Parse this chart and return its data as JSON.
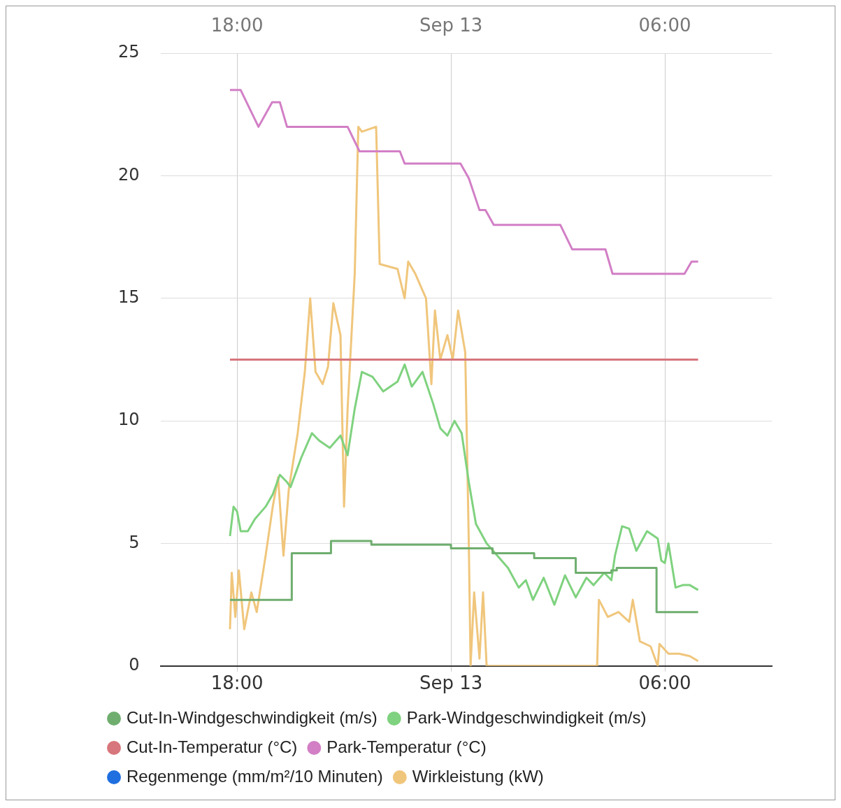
{
  "chart_data": {
    "type": "line",
    "xlim": [
      "--09-12T15:51",
      "--09-13T09:00"
    ],
    "xticks": [
      {
        "value": "--09-12T18:00",
        "label": "18:00"
      },
      {
        "value": "--09-13",
        "label": "Sep 13"
      },
      {
        "value": "--09-13T06:00",
        "label": "06:00"
      }
    ],
    "x2lim": [
      "--09-12T15:51",
      "--09-13T09:00"
    ],
    "x2ticks": [
      {
        "value": "--09-12T18:00",
        "label": "18:00"
      },
      {
        "value": "--09-13",
        "label": "Sep 13"
      },
      {
        "value": "--09-13T06:00",
        "label": "06:00"
      }
    ],
    "ylim": [
      0,
      25
    ],
    "yticks": [
      0,
      5,
      10,
      15,
      20,
      25
    ],
    "grid": true,
    "legend": "bottom",
    "marker": "none",
    "line_style": "solid",
    "series": [
      {
        "name": "Cut-In-Windgeschwindigkeit (m/s)",
        "type": "step",
        "color": "#6fae6f",
        "x": [
          "--09-12T17:48",
          "--09-12T19:32",
          "--09-12T20:38",
          "--09-12T21:46",
          "--09-13T00:00",
          "--09-13T01:10",
          "--09-13T02:20",
          "--09-13T03:30",
          "--09-13T04:30",
          "--09-13T04:39",
          "--09-13T05:46",
          "--09-13T06:56"
        ],
        "values": [
          2.7,
          4.6,
          5.1,
          4.95,
          4.8,
          4.6,
          4.4,
          3.8,
          3.9,
          4.0,
          2.2,
          2.2
        ]
      },
      {
        "name": "Park-Windgeschwindigkeit (m/s)",
        "color": "#7fd27f",
        "x": [
          "--09-12T17:48",
          "--09-12T17:54",
          "--09-12T18:00",
          "--09-12T18:06",
          "--09-12T18:18",
          "--09-12T18:30",
          "--09-12T18:48",
          "--09-12T19:00",
          "--09-12T19:12",
          "--09-12T19:24",
          "--09-12T19:30",
          "--09-12T19:48",
          "--09-12T20:06",
          "--09-12T20:18",
          "--09-12T20:36",
          "--09-12T20:54",
          "--09-12T21:06",
          "--09-12T21:18",
          "--09-12T21:30",
          "--09-12T21:48",
          "--09-12T22:06",
          "--09-12T22:30",
          "--09-12T22:42",
          "--09-12T22:54",
          "--09-12T23:12",
          "--09-12T23:30",
          "--09-12T23:42",
          "--09-12T23:54",
          "--09-13T00:06",
          "--09-13T00:18",
          "--09-13T00:30",
          "--09-13T00:42",
          "--09-13T01:00",
          "--09-13T01:18",
          "--09-13T01:36",
          "--09-13T01:54",
          "--09-13T02:06",
          "--09-13T02:18",
          "--09-13T02:36",
          "--09-13T02:54",
          "--09-13T03:12",
          "--09-13T03:30",
          "--09-13T03:48",
          "--09-13T04:00",
          "--09-13T04:18",
          "--09-13T04:30",
          "--09-13T04:36",
          "--09-13T04:48",
          "--09-13T05:00",
          "--09-13T05:12",
          "--09-13T05:30",
          "--09-13T05:48",
          "--09-13T05:54",
          "--09-13T06:00",
          "--09-13T06:06",
          "--09-13T06:18",
          "--09-13T06:30",
          "--09-13T06:42",
          "--09-13T06:56"
        ],
        "values": [
          5.3,
          6.5,
          6.3,
          5.5,
          5.5,
          6.0,
          6.5,
          7.0,
          7.8,
          7.5,
          7.3,
          8.5,
          9.5,
          9.2,
          8.9,
          9.4,
          8.6,
          10.5,
          12.0,
          11.8,
          11.2,
          11.6,
          12.3,
          11.4,
          12.0,
          10.7,
          9.7,
          9.4,
          10.0,
          9.5,
          7.5,
          5.8,
          5.0,
          4.5,
          4.0,
          3.2,
          3.5,
          2.7,
          3.6,
          2.5,
          3.7,
          2.8,
          3.6,
          3.3,
          3.8,
          3.5,
          4.5,
          5.7,
          5.6,
          4.7,
          5.5,
          5.2,
          4.3,
          4.2,
          5.0,
          3.2,
          3.3,
          3.3,
          3.1
        ]
      },
      {
        "name": "Cut-In-Temperatur (°C)",
        "color": "#d7767c",
        "x": [
          "--09-12T17:48",
          "--09-13T06:56"
        ],
        "values": [
          12.5,
          12.5
        ]
      },
      {
        "name": "Park-Temperatur (°C)",
        "color": "#d27fc6",
        "x": [
          "--09-12T17:48",
          "--09-12T18:06",
          "--09-12T18:36",
          "--09-12T18:59",
          "--09-12T19:12",
          "--09-12T19:24",
          "--09-12T21:06",
          "--09-12T21:26",
          "--09-12T22:34",
          "--09-12T22:42",
          "--09-13T00:16",
          "--09-13T00:30",
          "--09-13T00:48",
          "--09-13T00:58",
          "--09-13T01:12",
          "--09-13T03:04",
          "--09-13T03:24",
          "--09-13T04:20",
          "--09-13T04:32",
          "--09-13T06:33",
          "--09-13T06:45",
          "--09-13T06:56"
        ],
        "values": [
          23.5,
          23.5,
          22.0,
          23.0,
          23.0,
          22.0,
          22.0,
          21.0,
          21.0,
          20.5,
          20.5,
          19.9,
          18.6,
          18.6,
          18.0,
          18.0,
          17.0,
          17.0,
          16.0,
          16.0,
          16.5,
          16.5
        ]
      },
      {
        "name": "Regenmenge (mm/m²/10 Minuten)",
        "color": "#1f6fe0"
      },
      {
        "name": "Wirkleistung (kW)",
        "color": "#f0c67c",
        "x": [
          "--09-12T17:48",
          "--09-12T17:51",
          "--09-12T17:57",
          "--09-12T18:03",
          "--09-12T18:12",
          "--09-12T18:24",
          "--09-12T18:33",
          "--09-12T18:48",
          "--09-12T19:00",
          "--09-12T19:09",
          "--09-12T19:18",
          "--09-12T19:27",
          "--09-12T19:42",
          "--09-12T19:54",
          "--09-12T20:03",
          "--09-12T20:12",
          "--09-12T20:24",
          "--09-12T20:33",
          "--09-12T20:42",
          "--09-12T20:54",
          "--09-12T21:00",
          "--09-12T21:06",
          "--09-12T21:18",
          "--09-12T21:24",
          "--09-12T21:30",
          "--09-12T21:54",
          "--09-12T22:00",
          "--09-12T22:30",
          "--09-12T22:42",
          "--09-12T22:48",
          "--09-12T23:00",
          "--09-12T23:18",
          "--09-12T23:27",
          "--09-12T23:33",
          "--09-12T23:42",
          "--09-12T23:54",
          "--09-13T00:03",
          "--09-13T00:12",
          "--09-13T00:24",
          "--09-13T00:30",
          "--09-13T00:33",
          "--09-13T00:39",
          "--09-13T00:48",
          "--09-13T00:54",
          "--09-13T01:00",
          "--09-13T04:06",
          "--09-13T04:09",
          "--09-13T04:24",
          "--09-13T04:42",
          "--09-13T05:00",
          "--09-13T05:06",
          "--09-13T05:18",
          "--09-13T05:36",
          "--09-13T05:48",
          "--09-13T05:51",
          "--09-13T06:06",
          "--09-13T06:24",
          "--09-13T06:42",
          "--09-13T06:56"
        ],
        "values": [
          1.5,
          3.8,
          2.0,
          3.9,
          1.5,
          3.0,
          2.2,
          4.5,
          6.5,
          7.7,
          4.5,
          7.2,
          9.5,
          12.0,
          15.0,
          12.0,
          11.5,
          12.2,
          14.8,
          13.5,
          6.5,
          10.5,
          16.0,
          22.0,
          21.8,
          22.0,
          16.4,
          16.2,
          15.0,
          16.5,
          16.0,
          15.0,
          11.5,
          14.5,
          12.5,
          13.5,
          12.5,
          14.5,
          12.8,
          5.0,
          0,
          3.0,
          0.3,
          3.0,
          0,
          0,
          2.7,
          2.0,
          2.2,
          1.8,
          2.7,
          1.0,
          0.8,
          0,
          0.9,
          0.5,
          0.5,
          0.4,
          0.2
        ]
      }
    ]
  }
}
